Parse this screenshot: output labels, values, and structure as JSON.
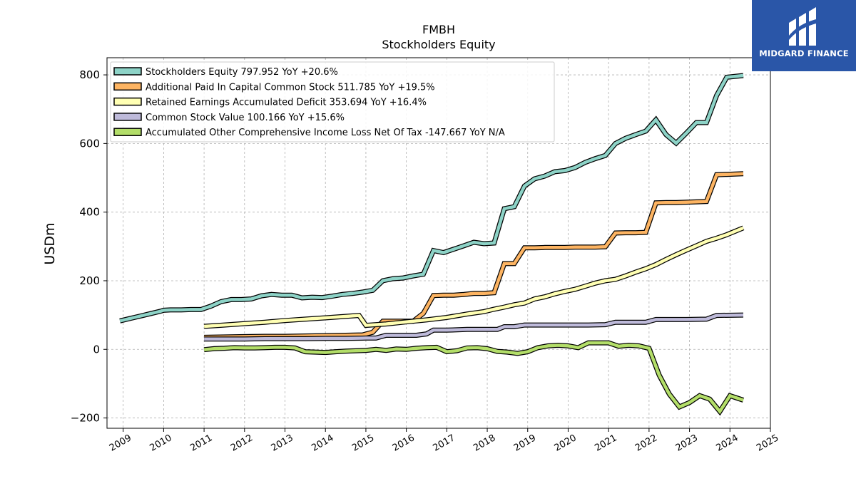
{
  "brand": {
    "name": "MIDGARD FINANCE",
    "color": "#2a56a8"
  },
  "chart_data": {
    "type": "line",
    "title": "FMBH",
    "subtitle": "Stockholders  Equity",
    "xlabel": "",
    "ylabel": "USDm",
    "xlim": [
      2008.6,
      2025.0
    ],
    "ylim": [
      -230,
      850
    ],
    "xticks": [
      "2009",
      "2010",
      "2011",
      "2012",
      "2013",
      "2014",
      "2015",
      "2016",
      "2017",
      "2018",
      "2019",
      "2020",
      "2021",
      "2022",
      "2023",
      "2024",
      "2025"
    ],
    "yticks": [
      -200,
      0,
      200,
      400,
      600,
      800
    ],
    "ytick_labels": [
      "−200",
      "0",
      "200",
      "400",
      "600",
      "800"
    ],
    "grid": true,
    "legend_position": "top-left",
    "series": [
      {
        "name": "Stockholders Equity",
        "legend": "Stockholders Equity  797.952 YoY +20.6%",
        "color": "#8dd3c7",
        "points": [
          [
            2008.92,
            83
          ],
          [
            2009.17,
            90
          ],
          [
            2009.42,
            97
          ],
          [
            2009.67,
            104
          ],
          [
            2009.92,
            111
          ],
          [
            2010.0,
            114
          ],
          [
            2010.17,
            115
          ],
          [
            2010.42,
            115
          ],
          [
            2010.67,
            116
          ],
          [
            2010.92,
            116
          ],
          [
            2011.17,
            126
          ],
          [
            2011.42,
            139
          ],
          [
            2011.67,
            145
          ],
          [
            2011.92,
            145
          ],
          [
            2012.17,
            147
          ],
          [
            2012.42,
            156
          ],
          [
            2012.67,
            160
          ],
          [
            2012.92,
            158
          ],
          [
            2013.17,
            158
          ],
          [
            2013.42,
            150
          ],
          [
            2013.67,
            152
          ],
          [
            2013.92,
            151
          ],
          [
            2014.17,
            155
          ],
          [
            2014.42,
            160
          ],
          [
            2014.67,
            163
          ],
          [
            2014.92,
            167
          ],
          [
            2015.17,
            172
          ],
          [
            2015.42,
            200
          ],
          [
            2015.67,
            206
          ],
          [
            2015.92,
            208
          ],
          [
            2016.17,
            214
          ],
          [
            2016.42,
            219
          ],
          [
            2016.67,
            288
          ],
          [
            2016.92,
            282
          ],
          [
            2017.17,
            292
          ],
          [
            2017.42,
            302
          ],
          [
            2017.67,
            312
          ],
          [
            2017.92,
            308
          ],
          [
            2018.17,
            310
          ],
          [
            2018.42,
            410
          ],
          [
            2018.67,
            416
          ],
          [
            2018.92,
            476
          ],
          [
            2019.17,
            497
          ],
          [
            2019.42,
            505
          ],
          [
            2019.67,
            518
          ],
          [
            2019.92,
            521
          ],
          [
            2020.17,
            530
          ],
          [
            2020.42,
            545
          ],
          [
            2020.67,
            556
          ],
          [
            2020.92,
            565
          ],
          [
            2021.17,
            600
          ],
          [
            2021.42,
            615
          ],
          [
            2021.67,
            626
          ],
          [
            2021.92,
            636
          ],
          [
            2022.17,
            669
          ],
          [
            2022.42,
            626
          ],
          [
            2022.67,
            601
          ],
          [
            2022.92,
            630
          ],
          [
            2023.17,
            661
          ],
          [
            2023.42,
            661
          ],
          [
            2023.67,
            740
          ],
          [
            2023.92,
            793
          ],
          [
            2024.33,
            798
          ]
        ]
      },
      {
        "name": "Additional Paid In Capital Common Stock",
        "legend": "Additional Paid In Capital Common Stock  511.785 YoY +19.5%",
        "color": "#fdb462",
        "points": [
          [
            2011.0,
            35
          ],
          [
            2011.5,
            36
          ],
          [
            2012.0,
            37
          ],
          [
            2012.5,
            38
          ],
          [
            2013.0,
            38
          ],
          [
            2013.5,
            39
          ],
          [
            2014.0,
            40
          ],
          [
            2014.5,
            41
          ],
          [
            2014.92,
            42
          ],
          [
            2015.17,
            50
          ],
          [
            2015.42,
            82
          ],
          [
            2015.67,
            82
          ],
          [
            2015.92,
            82
          ],
          [
            2016.17,
            82
          ],
          [
            2016.42,
            105
          ],
          [
            2016.67,
            157
          ],
          [
            2016.92,
            158
          ],
          [
            2017.17,
            158
          ],
          [
            2017.42,
            160
          ],
          [
            2017.67,
            163
          ],
          [
            2017.92,
            163
          ],
          [
            2018.17,
            165
          ],
          [
            2018.42,
            250
          ],
          [
            2018.67,
            250
          ],
          [
            2018.92,
            296
          ],
          [
            2019.17,
            296
          ],
          [
            2019.42,
            297
          ],
          [
            2019.67,
            297
          ],
          [
            2019.92,
            297
          ],
          [
            2020.17,
            298
          ],
          [
            2020.42,
            298
          ],
          [
            2020.67,
            298
          ],
          [
            2020.92,
            299
          ],
          [
            2021.17,
            339
          ],
          [
            2021.42,
            340
          ],
          [
            2021.67,
            340
          ],
          [
            2021.92,
            341
          ],
          [
            2022.17,
            427
          ],
          [
            2022.42,
            428
          ],
          [
            2022.67,
            428
          ],
          [
            2022.92,
            429
          ],
          [
            2023.17,
            430
          ],
          [
            2023.42,
            431
          ],
          [
            2023.67,
            509
          ],
          [
            2023.92,
            510
          ],
          [
            2024.33,
            512
          ]
        ]
      },
      {
        "name": "Retained Earnings Accumulated Deficit",
        "legend": "Retained Earnings Accumulated Deficit  353.694 YoY +16.4%",
        "color": "#ffffb3",
        "points": [
          [
            2011.0,
            67
          ],
          [
            2011.5,
            71
          ],
          [
            2012.0,
            75
          ],
          [
            2012.5,
            79
          ],
          [
            2013.0,
            84
          ],
          [
            2013.5,
            88
          ],
          [
            2014.0,
            92
          ],
          [
            2014.5,
            96
          ],
          [
            2014.83,
            99
          ],
          [
            2015.0,
            70
          ],
          [
            2015.5,
            74
          ],
          [
            2016.0,
            80
          ],
          [
            2016.5,
            86
          ],
          [
            2017.0,
            93
          ],
          [
            2017.5,
            103
          ],
          [
            2017.92,
            110
          ],
          [
            2018.17,
            117
          ],
          [
            2018.42,
            123
          ],
          [
            2018.67,
            130
          ],
          [
            2018.92,
            135
          ],
          [
            2019.17,
            147
          ],
          [
            2019.42,
            153
          ],
          [
            2019.67,
            162
          ],
          [
            2019.92,
            169
          ],
          [
            2020.17,
            175
          ],
          [
            2020.42,
            184
          ],
          [
            2020.67,
            193
          ],
          [
            2020.92,
            200
          ],
          [
            2021.17,
            204
          ],
          [
            2021.42,
            214
          ],
          [
            2021.67,
            225
          ],
          [
            2021.92,
            235
          ],
          [
            2022.17,
            247
          ],
          [
            2022.42,
            262
          ],
          [
            2022.67,
            276
          ],
          [
            2022.92,
            289
          ],
          [
            2023.17,
            302
          ],
          [
            2023.42,
            315
          ],
          [
            2023.67,
            324
          ],
          [
            2023.92,
            334
          ],
          [
            2024.33,
            354
          ]
        ]
      },
      {
        "name": "Common Stock Value",
        "legend": "Common Stock Value  100.166 YoY +15.6%",
        "color": "#bebada",
        "points": [
          [
            2011.0,
            30
          ],
          [
            2011.5,
            30
          ],
          [
            2012.0,
            30
          ],
          [
            2012.5,
            31
          ],
          [
            2013.0,
            31
          ],
          [
            2013.5,
            31
          ],
          [
            2014.0,
            32
          ],
          [
            2014.5,
            32
          ],
          [
            2015.0,
            33
          ],
          [
            2015.25,
            33
          ],
          [
            2015.5,
            41
          ],
          [
            2016.0,
            41
          ],
          [
            2016.25,
            41
          ],
          [
            2016.5,
            45
          ],
          [
            2016.67,
            56
          ],
          [
            2017.0,
            56
          ],
          [
            2017.5,
            58
          ],
          [
            2018.0,
            58
          ],
          [
            2018.25,
            58
          ],
          [
            2018.42,
            66
          ],
          [
            2018.67,
            66
          ],
          [
            2018.92,
            71
          ],
          [
            2019.5,
            71
          ],
          [
            2020.0,
            71
          ],
          [
            2020.5,
            71
          ],
          [
            2020.92,
            72
          ],
          [
            2021.17,
            79
          ],
          [
            2021.5,
            79
          ],
          [
            2021.92,
            79
          ],
          [
            2022.17,
            87
          ],
          [
            2022.5,
            87
          ],
          [
            2022.92,
            87
          ],
          [
            2023.42,
            88
          ],
          [
            2023.67,
            99
          ],
          [
            2024.33,
            100
          ]
        ]
      },
      {
        "name": "Accumulated Other Comprehensive Income Loss Net Of Tax",
        "legend": "Accumulated Other Comprehensive Income Loss Net Of Tax  -147.667 YoY N/A",
        "color": "#b3de69",
        "points": [
          [
            2011.0,
            -1
          ],
          [
            2011.25,
            2
          ],
          [
            2011.5,
            3
          ],
          [
            2011.75,
            5
          ],
          [
            2012.0,
            4
          ],
          [
            2012.25,
            4
          ],
          [
            2012.5,
            5
          ],
          [
            2012.75,
            6
          ],
          [
            2013.0,
            6
          ],
          [
            2013.25,
            4
          ],
          [
            2013.5,
            -7
          ],
          [
            2013.75,
            -8
          ],
          [
            2014.0,
            -9
          ],
          [
            2014.25,
            -7
          ],
          [
            2014.5,
            -5
          ],
          [
            2014.75,
            -4
          ],
          [
            2015.0,
            -3
          ],
          [
            2015.25,
            0
          ],
          [
            2015.5,
            -3
          ],
          [
            2015.75,
            1
          ],
          [
            2016.0,
            0
          ],
          [
            2016.25,
            3
          ],
          [
            2016.5,
            5
          ],
          [
            2016.75,
            6
          ],
          [
            2017.0,
            -7
          ],
          [
            2017.25,
            -4
          ],
          [
            2017.5,
            4
          ],
          [
            2017.75,
            5
          ],
          [
            2018.0,
            2
          ],
          [
            2018.25,
            -6
          ],
          [
            2018.5,
            -8
          ],
          [
            2018.75,
            -12
          ],
          [
            2019.0,
            -7
          ],
          [
            2019.25,
            5
          ],
          [
            2019.5,
            10
          ],
          [
            2019.75,
            12
          ],
          [
            2020.0,
            10
          ],
          [
            2020.25,
            5
          ],
          [
            2020.5,
            19
          ],
          [
            2020.75,
            19
          ],
          [
            2021.0,
            19
          ],
          [
            2021.25,
            9
          ],
          [
            2021.5,
            12
          ],
          [
            2021.75,
            10
          ],
          [
            2022.0,
            3
          ],
          [
            2022.25,
            -75
          ],
          [
            2022.5,
            -130
          ],
          [
            2022.75,
            -168
          ],
          [
            2023.0,
            -155
          ],
          [
            2023.25,
            -135
          ],
          [
            2023.5,
            -145
          ],
          [
            2023.75,
            -181
          ],
          [
            2024.0,
            -135
          ],
          [
            2024.33,
            -148
          ]
        ]
      }
    ]
  }
}
